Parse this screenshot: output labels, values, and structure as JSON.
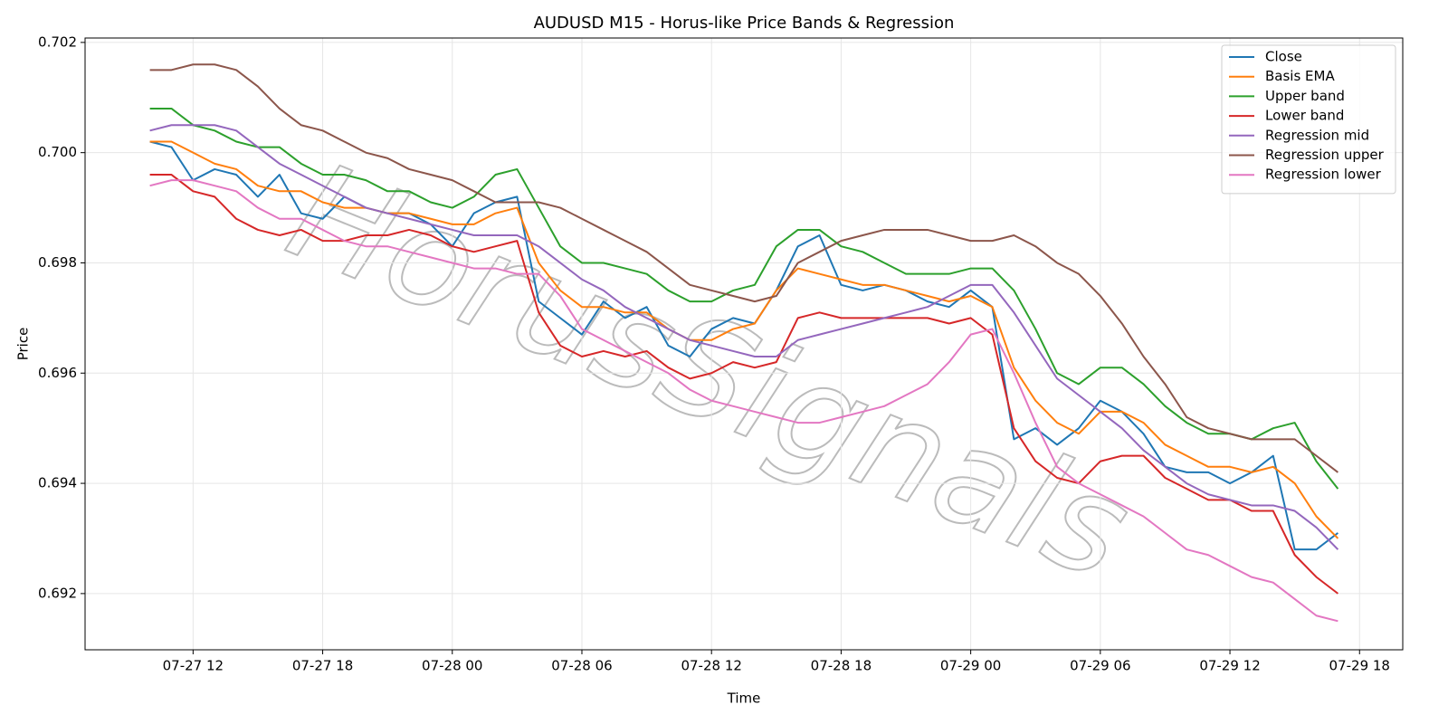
{
  "chart_data": {
    "type": "line",
    "title": "AUDUSD M15 - Horus-like Price Bands & Regression",
    "xlabel": "Time",
    "ylabel": "Price",
    "watermark": "HorusSignals",
    "x": [
      "07-27 10",
      "07-27 11",
      "07-27 12",
      "07-27 13",
      "07-27 14",
      "07-27 15",
      "07-27 16",
      "07-27 17",
      "07-27 18",
      "07-27 19",
      "07-27 20",
      "07-27 21",
      "07-27 22",
      "07-27 23",
      "07-28 00",
      "07-28 01",
      "07-28 02",
      "07-28 03",
      "07-28 04",
      "07-28 05",
      "07-28 06",
      "07-28 07",
      "07-28 08",
      "07-28 09",
      "07-28 10",
      "07-28 11",
      "07-28 12",
      "07-28 13",
      "07-28 14",
      "07-28 15",
      "07-28 16",
      "07-28 17",
      "07-28 18",
      "07-28 19",
      "07-28 20",
      "07-28 21",
      "07-28 22",
      "07-28 23",
      "07-29 00",
      "07-29 01",
      "07-29 02",
      "07-29 03",
      "07-29 04",
      "07-29 05",
      "07-29 06",
      "07-29 07",
      "07-29 08",
      "07-29 09",
      "07-29 10",
      "07-29 11",
      "07-29 12",
      "07-29 13",
      "07-29 14",
      "07-29 15",
      "07-29 16",
      "07-29 17"
    ],
    "series": [
      {
        "name": "Close",
        "color": "#1f77b4",
        "values": [
          0.7002,
          0.7001,
          0.6995,
          0.6997,
          0.6996,
          0.6992,
          0.6996,
          0.6989,
          0.6988,
          0.6992,
          0.699,
          0.6989,
          0.6989,
          0.6987,
          0.6983,
          0.6989,
          0.6991,
          0.6992,
          0.6973,
          0.697,
          0.6967,
          0.6973,
          0.697,
          0.6972,
          0.6965,
          0.6963,
          0.6968,
          0.697,
          0.6969,
          0.6975,
          0.6983,
          0.6985,
          0.6976,
          0.6975,
          0.6976,
          0.6975,
          0.6973,
          0.6972,
          0.6975,
          0.6972,
          0.6948,
          0.695,
          0.6947,
          0.695,
          0.6955,
          0.6953,
          0.6949,
          0.6943,
          0.6942,
          0.6942,
          0.694,
          0.6942,
          0.6945,
          0.6928,
          0.6928,
          0.6931
        ]
      },
      {
        "name": "Basis EMA",
        "color": "#ff7f0e",
        "values": [
          0.7002,
          0.7002,
          0.7,
          0.6998,
          0.6997,
          0.6994,
          0.6993,
          0.6993,
          0.6991,
          0.699,
          0.699,
          0.6989,
          0.6989,
          0.6988,
          0.6987,
          0.6987,
          0.6989,
          0.699,
          0.698,
          0.6975,
          0.6972,
          0.6972,
          0.6971,
          0.6971,
          0.6968,
          0.6966,
          0.6966,
          0.6968,
          0.6969,
          0.6975,
          0.6979,
          0.6978,
          0.6977,
          0.6976,
          0.6976,
          0.6975,
          0.6974,
          0.6973,
          0.6974,
          0.6972,
          0.6961,
          0.6955,
          0.6951,
          0.6949,
          0.6953,
          0.6953,
          0.6951,
          0.6947,
          0.6945,
          0.6943,
          0.6943,
          0.6942,
          0.6943,
          0.694,
          0.6934,
          0.693
        ]
      },
      {
        "name": "Upper band",
        "color": "#2ca02c",
        "values": [
          0.7008,
          0.7008,
          0.7005,
          0.7004,
          0.7002,
          0.7001,
          0.7001,
          0.6998,
          0.6996,
          0.6996,
          0.6995,
          0.6993,
          0.6993,
          0.6991,
          0.699,
          0.6992,
          0.6996,
          0.6997,
          0.699,
          0.6983,
          0.698,
          0.698,
          0.6979,
          0.6978,
          0.6975,
          0.6973,
          0.6973,
          0.6975,
          0.6976,
          0.6983,
          0.6986,
          0.6986,
          0.6983,
          0.6982,
          0.698,
          0.6978,
          0.6978,
          0.6978,
          0.6979,
          0.6979,
          0.6975,
          0.6968,
          0.696,
          0.6958,
          0.6961,
          0.6961,
          0.6958,
          0.6954,
          0.6951,
          0.6949,
          0.6949,
          0.6948,
          0.695,
          0.6951,
          0.6944,
          0.6939
        ]
      },
      {
        "name": "Lower band",
        "color": "#d62728",
        "values": [
          0.6996,
          0.6996,
          0.6993,
          0.6992,
          0.6988,
          0.6986,
          0.6985,
          0.6986,
          0.6984,
          0.6984,
          0.6985,
          0.6985,
          0.6986,
          0.6985,
          0.6983,
          0.6982,
          0.6983,
          0.6984,
          0.6971,
          0.6965,
          0.6963,
          0.6964,
          0.6963,
          0.6964,
          0.6961,
          0.6959,
          0.696,
          0.6962,
          0.6961,
          0.6962,
          0.697,
          0.6971,
          0.697,
          0.697,
          0.697,
          0.697,
          0.697,
          0.6969,
          0.697,
          0.6967,
          0.695,
          0.6944,
          0.6941,
          0.694,
          0.6944,
          0.6945,
          0.6945,
          0.6941,
          0.6939,
          0.6937,
          0.6937,
          0.6935,
          0.6935,
          0.6927,
          0.6923,
          0.692
        ]
      },
      {
        "name": "Regression mid",
        "color": "#9467bd",
        "values": [
          0.7004,
          0.7005,
          0.7005,
          0.7005,
          0.7004,
          0.7001,
          0.6998,
          0.6996,
          0.6994,
          0.6992,
          0.699,
          0.6989,
          0.6988,
          0.6987,
          0.6986,
          0.6985,
          0.6985,
          0.6985,
          0.6983,
          0.698,
          0.6977,
          0.6975,
          0.6972,
          0.697,
          0.6968,
          0.6966,
          0.6965,
          0.6964,
          0.6963,
          0.6963,
          0.6966,
          0.6967,
          0.6968,
          0.6969,
          0.697,
          0.6971,
          0.6972,
          0.6974,
          0.6976,
          0.6976,
          0.6971,
          0.6965,
          0.6959,
          0.6956,
          0.6953,
          0.695,
          0.6946,
          0.6943,
          0.694,
          0.6938,
          0.6937,
          0.6936,
          0.6936,
          0.6935,
          0.6932,
          0.6928
        ]
      },
      {
        "name": "Regression upper",
        "color": "#8c564b",
        "values": [
          0.7015,
          0.7015,
          0.7016,
          0.7016,
          0.7015,
          0.7012,
          0.7008,
          0.7005,
          0.7004,
          0.7002,
          0.7,
          0.6999,
          0.6997,
          0.6996,
          0.6995,
          0.6993,
          0.6991,
          0.6991,
          0.6991,
          0.699,
          0.6988,
          0.6986,
          0.6984,
          0.6982,
          0.6979,
          0.6976,
          0.6975,
          0.6974,
          0.6973,
          0.6974,
          0.698,
          0.6982,
          0.6984,
          0.6985,
          0.6986,
          0.6986,
          0.6986,
          0.6985,
          0.6984,
          0.6984,
          0.6985,
          0.6983,
          0.698,
          0.6978,
          0.6974,
          0.6969,
          0.6963,
          0.6958,
          0.6952,
          0.695,
          0.6949,
          0.6948,
          0.6948,
          0.6948,
          0.6945,
          0.6942
        ]
      },
      {
        "name": "Regression lower",
        "color": "#e377c2",
        "values": [
          0.6994,
          0.6995,
          0.6995,
          0.6994,
          0.6993,
          0.699,
          0.6988,
          0.6988,
          0.6986,
          0.6984,
          0.6983,
          0.6983,
          0.6982,
          0.6981,
          0.698,
          0.6979,
          0.6979,
          0.6978,
          0.6978,
          0.6974,
          0.6968,
          0.6966,
          0.6964,
          0.6962,
          0.696,
          0.6957,
          0.6955,
          0.6954,
          0.6953,
          0.6952,
          0.6951,
          0.6951,
          0.6952,
          0.6953,
          0.6954,
          0.6956,
          0.6958,
          0.6962,
          0.6967,
          0.6968,
          0.696,
          0.6951,
          0.6943,
          0.694,
          0.6938,
          0.6936,
          0.6934,
          0.6931,
          0.6928,
          0.6927,
          0.6925,
          0.6923,
          0.6922,
          0.6919,
          0.6916,
          0.6915
        ]
      }
    ],
    "xlim": [
      "07-27 07",
      "07-29 20"
    ],
    "xticks": [
      "07-27 12",
      "07-27 18",
      "07-28 00",
      "07-28 06",
      "07-28 12",
      "07-28 18",
      "07-29 00",
      "07-29 06",
      "07-29 12",
      "07-29 18"
    ],
    "ylim": [
      0.69098,
      0.70208
    ],
    "yticks": [
      0.692,
      0.694,
      0.696,
      0.698,
      {
        "value": 0.7,
        "label": "0.700"
      },
      0.702
    ],
    "grid": true,
    "legend": "upper right"
  }
}
